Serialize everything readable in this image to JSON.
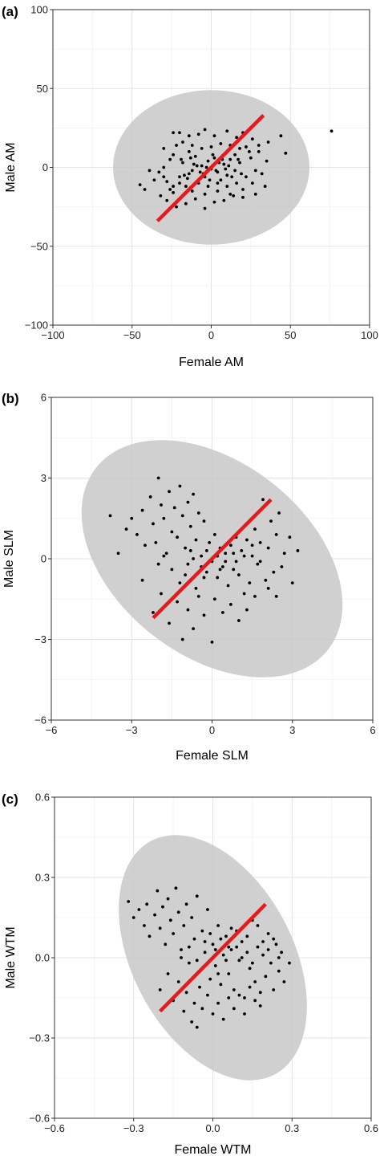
{
  "chart_data": [
    {
      "type": "scatter",
      "panel_label": "(a)",
      "xlabel": "Female AM",
      "ylabel": "Male AM",
      "xlim": [
        -100,
        100
      ],
      "ylim": [
        -100,
        100
      ],
      "xticks": [
        -100,
        -50,
        0,
        50,
        100
      ],
      "yticks": [
        -100,
        -50,
        0,
        50,
        100
      ],
      "xtick_labels": [
        "−100",
        "−50",
        "0",
        "50",
        "100"
      ],
      "ytick_labels": [
        "−100",
        "−50",
        "0",
        "50",
        "100"
      ],
      "grid": true,
      "colors": {
        "points": "#000000",
        "line": "#e41a1c",
        "ellipse": "#c8c8c8"
      },
      "fit_line": {
        "x": [
          -34,
          33
        ],
        "y": [
          -34,
          33
        ]
      },
      "ellipse": {
        "center": [
          0,
          0
        ],
        "axes": [
          62,
          49
        ],
        "angle_deg": 0
      },
      "points": [
        [
          76,
          23
        ],
        [
          44,
          20
        ],
        [
          47,
          9
        ],
        [
          36,
          16
        ],
        [
          30,
          10
        ],
        [
          25,
          6
        ],
        [
          22,
          13
        ],
        [
          18,
          3
        ],
        [
          15,
          -2
        ],
        [
          12,
          5
        ],
        [
          10,
          -5
        ],
        [
          8,
          2
        ],
        [
          6,
          -8
        ],
        [
          4,
          -3
        ],
        [
          2,
          6
        ],
        [
          0,
          -1
        ],
        [
          -2,
          4
        ],
        [
          -4,
          -6
        ],
        [
          -6,
          1
        ],
        [
          -8,
          -10
        ],
        [
          -10,
          7
        ],
        [
          -12,
          -2
        ],
        [
          -14,
          10
        ],
        [
          -16,
          -12
        ],
        [
          -18,
          3
        ],
        [
          -20,
          -6
        ],
        [
          -22,
          14
        ],
        [
          -24,
          -16
        ],
        [
          -26,
          5
        ],
        [
          -28,
          -9
        ],
        [
          -30,
          0
        ],
        [
          -33,
          -3
        ],
        [
          -36,
          -8
        ],
        [
          -39,
          -2
        ],
        [
          -42,
          -14
        ],
        [
          -45,
          -11
        ],
        [
          -24,
          22
        ],
        [
          -20,
          22
        ],
        [
          -14,
          20
        ],
        [
          -8,
          21
        ],
        [
          -4,
          24
        ],
        [
          2,
          20
        ],
        [
          10,
          23
        ],
        [
          16,
          19
        ],
        [
          20,
          22
        ],
        [
          26,
          18
        ],
        [
          -28,
          -21
        ],
        [
          -22,
          -25
        ],
        [
          -16,
          -23
        ],
        [
          -10,
          -20
        ],
        [
          -4,
          -26
        ],
        [
          2,
          -22
        ],
        [
          8,
          -21
        ],
        [
          14,
          -18
        ],
        [
          20,
          -14
        ],
        [
          26,
          -10
        ],
        [
          32,
          -4
        ],
        [
          35,
          4
        ],
        [
          28,
          -2
        ],
        [
          22,
          -6
        ],
        [
          16,
          -10
        ],
        [
          10,
          -12
        ],
        [
          4,
          -10
        ],
        [
          -2,
          -12
        ],
        [
          -8,
          -8
        ],
        [
          -14,
          -4
        ],
        [
          -20,
          -10
        ],
        [
          -26,
          -14
        ],
        [
          -32,
          -18
        ],
        [
          -30,
          12
        ],
        [
          -24,
          8
        ],
        [
          -18,
          16
        ],
        [
          -12,
          14
        ],
        [
          -6,
          12
        ],
        [
          0,
          13
        ],
        [
          6,
          15
        ],
        [
          12,
          14
        ],
        [
          18,
          12
        ],
        [
          24,
          10
        ],
        [
          30,
          14
        ],
        [
          34,
          -12
        ],
        [
          28,
          -17
        ],
        [
          20,
          -19
        ],
        [
          12,
          -17
        ],
        [
          4,
          -15
        ],
        [
          -4,
          -17
        ],
        [
          -12,
          -15
        ],
        [
          -18,
          -18
        ],
        [
          -24,
          -12
        ],
        [
          -30,
          -6
        ],
        [
          -3,
          0
        ],
        [
          3,
          -2
        ],
        [
          7,
          5
        ],
        [
          -7,
          -3
        ],
        [
          11,
          1
        ],
        [
          -11,
          2
        ],
        [
          15,
          8
        ],
        [
          -15,
          -7
        ],
        [
          19,
          -4
        ],
        [
          -19,
          5
        ],
        [
          1,
          8
        ],
        [
          -1,
          -8
        ],
        [
          5,
          3
        ],
        [
          -5,
          -4
        ],
        [
          9,
          -1
        ],
        [
          -9,
          1
        ],
        [
          13,
          -6
        ],
        [
          -13,
          6
        ],
        [
          17,
          5
        ],
        [
          -17,
          -5
        ]
      ]
    },
    {
      "type": "scatter",
      "panel_label": "(b)",
      "xlabel": "Female SLM",
      "ylabel": "Male SLM",
      "xlim": [
        -6,
        6
      ],
      "ylim": [
        -6,
        6
      ],
      "xticks": [
        -6,
        -3,
        0,
        3,
        6
      ],
      "yticks": [
        -6,
        -3,
        0,
        3,
        6
      ],
      "xtick_labels": [
        "−6",
        "−3",
        "0",
        "3",
        "6"
      ],
      "ytick_labels": [
        "−6",
        "−3",
        "0",
        "3",
        "6"
      ],
      "grid": true,
      "colors": {
        "points": "#000000",
        "line": "#e41a1c",
        "ellipse": "#c8c8c8"
      },
      "fit_line": {
        "x": [
          -2.2,
          2.2
        ],
        "y": [
          -2.2,
          2.2
        ]
      },
      "ellipse": {
        "center": [
          0,
          0
        ],
        "axes": [
          5.5,
          3.6
        ],
        "angle_deg": -38
      },
      "points": [
        [
          -3.8,
          1.6
        ],
        [
          -3.5,
          0.2
        ],
        [
          -3.2,
          1.1
        ],
        [
          -3.0,
          1.5
        ],
        [
          -2.8,
          0.9
        ],
        [
          -2.6,
          1.8
        ],
        [
          -2.5,
          0.5
        ],
        [
          -2.3,
          2.3
        ],
        [
          -2.2,
          1.3
        ],
        [
          -2.1,
          0.6
        ],
        [
          -2.0,
          3.0
        ],
        [
          -1.9,
          2.0
        ],
        [
          -1.8,
          1.5
        ],
        [
          -1.7,
          0.2
        ],
        [
          -1.6,
          2.5
        ],
        [
          -1.5,
          1.0
        ],
        [
          -1.4,
          1.9
        ],
        [
          -1.3,
          0.8
        ],
        [
          -1.2,
          2.7
        ],
        [
          -1.1,
          1.6
        ],
        [
          -1.0,
          0.4
        ],
        [
          -0.9,
          2.1
        ],
        [
          -0.8,
          1.2
        ],
        [
          -0.7,
          2.4
        ],
        [
          -0.6,
          0.7
        ],
        [
          -0.5,
          1.7
        ],
        [
          -0.4,
          0.1
        ],
        [
          -0.3,
          1.4
        ],
        [
          -0.2,
          -0.5
        ],
        [
          -0.1,
          0.6
        ],
        [
          0.0,
          -0.1
        ],
        [
          0.1,
          0.9
        ],
        [
          0.2,
          -0.7
        ],
        [
          0.3,
          0.4
        ],
        [
          0.4,
          -0.3
        ],
        [
          0.5,
          0.2
        ],
        [
          0.6,
          -1.0
        ],
        [
          0.7,
          0.5
        ],
        [
          0.8,
          -0.4
        ],
        [
          0.9,
          0.8
        ],
        [
          1.0,
          -0.6
        ],
        [
          1.1,
          0.3
        ],
        [
          1.2,
          -1.3
        ],
        [
          1.3,
          0.7
        ],
        [
          1.4,
          -0.9
        ],
        [
          1.5,
          0.1
        ],
        [
          1.6,
          1.1
        ],
        [
          1.7,
          -0.2
        ],
        [
          1.8,
          0.6
        ],
        [
          1.9,
          2.2
        ],
        [
          2.0,
          -0.8
        ],
        [
          2.1,
          0.4
        ],
        [
          2.2,
          1.4
        ],
        [
          2.3,
          -0.5
        ],
        [
          2.4,
          0.9
        ],
        [
          2.5,
          1.7
        ],
        [
          2.6,
          -0.3
        ],
        [
          2.7,
          0.2
        ],
        [
          2.9,
          0.8
        ],
        [
          3.0,
          -0.9
        ],
        [
          3.2,
          0.3
        ],
        [
          -2.6,
          -0.8
        ],
        [
          -2.2,
          -2.0
        ],
        [
          -1.9,
          -1.3
        ],
        [
          -1.6,
          -2.4
        ],
        [
          -1.3,
          -1.6
        ],
        [
          -1.1,
          -3.0
        ],
        [
          -0.9,
          -1.9
        ],
        [
          -0.7,
          -2.6
        ],
        [
          -0.5,
          -1.4
        ],
        [
          -0.3,
          -2.1
        ],
        [
          0.0,
          -3.1
        ],
        [
          -1.5,
          -0.4
        ],
        [
          -1.2,
          -0.9
        ],
        [
          -0.9,
          -0.2
        ],
        [
          -0.6,
          -1.1
        ],
        [
          -0.3,
          -0.7
        ],
        [
          0.1,
          -1.5
        ],
        [
          0.4,
          -2.0
        ],
        [
          0.7,
          -1.7
        ],
        [
          1.0,
          -2.3
        ],
        [
          1.3,
          -1.9
        ],
        [
          1.6,
          -1.4
        ],
        [
          -2.0,
          -0.2
        ],
        [
          -1.8,
          0.1
        ],
        [
          -1.0,
          -0.6
        ],
        [
          -0.8,
          0.3
        ],
        [
          0.2,
          0.1
        ],
        [
          0.5,
          -0.1
        ],
        [
          0.8,
          0.2
        ],
        [
          1.2,
          0.1
        ],
        [
          1.5,
          0.5
        ],
        [
          1.8,
          -0.1
        ],
        [
          2.1,
          -1.1
        ],
        [
          2.4,
          -1.4
        ],
        [
          -0.2,
          0.3
        ],
        [
          0.3,
          -0.4
        ],
        [
          0.6,
          0.6
        ],
        [
          0.9,
          -0.1
        ],
        [
          -0.4,
          -0.3
        ],
        [
          -0.7,
          0.0
        ]
      ]
    },
    {
      "type": "scatter",
      "panel_label": "(c)",
      "xlabel": "Female WTM",
      "ylabel": "Male WTM",
      "xlim": [
        -0.6,
        0.6
      ],
      "ylim": [
        -0.6,
        0.6
      ],
      "xticks": [
        -0.6,
        -0.3,
        0.0,
        0.3,
        0.6
      ],
      "yticks": [
        -0.6,
        -0.3,
        0.0,
        0.3,
        0.6
      ],
      "xtick_labels": [
        "−0.6",
        "−0.3",
        "0.0",
        "0.3",
        "0.6"
      ],
      "ytick_labels": [
        "−0.6",
        "−0.3",
        "0.0",
        "0.3",
        "0.6"
      ],
      "grid": true,
      "colors": {
        "points": "#000000",
        "line": "#e41a1c",
        "ellipse": "#c8c8c8"
      },
      "fit_line": {
        "x": [
          -0.2,
          0.2
        ],
        "y": [
          -0.2,
          0.2
        ]
      },
      "ellipse": {
        "center": [
          0,
          0
        ],
        "axes": [
          0.5,
          0.3
        ],
        "angle_deg": -62
      },
      "points": [
        [
          -0.32,
          0.21
        ],
        [
          -0.3,
          0.15
        ],
        [
          -0.28,
          0.18
        ],
        [
          -0.26,
          0.12
        ],
        [
          -0.25,
          0.2
        ],
        [
          -0.24,
          0.08
        ],
        [
          -0.22,
          0.16
        ],
        [
          -0.21,
          0.25
        ],
        [
          -0.2,
          0.11
        ],
        [
          -0.19,
          0.19
        ],
        [
          -0.18,
          0.05
        ],
        [
          -0.17,
          0.22
        ],
        [
          -0.16,
          0.14
        ],
        [
          -0.15,
          0.09
        ],
        [
          -0.14,
          0.26
        ],
        [
          -0.13,
          0.17
        ],
        [
          -0.12,
          0.03
        ],
        [
          -0.11,
          0.12
        ],
        [
          -0.1,
          0.2
        ],
        [
          -0.09,
          -0.02
        ],
        [
          -0.08,
          0.15
        ],
        [
          -0.07,
          0.07
        ],
        [
          -0.06,
          0.23
        ],
        [
          -0.05,
          -0.05
        ],
        [
          -0.04,
          0.1
        ],
        [
          -0.03,
          0.02
        ],
        [
          -0.02,
          0.18
        ],
        [
          -0.01,
          -0.08
        ],
        [
          0.0,
          0.05
        ],
        [
          0.01,
          -0.03
        ],
        [
          0.02,
          0.12
        ],
        [
          0.03,
          -0.1
        ],
        [
          0.04,
          0.01
        ],
        [
          0.05,
          0.08
        ],
        [
          0.06,
          -0.06
        ],
        [
          0.07,
          0.03
        ],
        [
          0.08,
          -0.12
        ],
        [
          0.09,
          0.1
        ],
        [
          0.1,
          -0.01
        ],
        [
          0.11,
          0.06
        ],
        [
          0.12,
          -0.15
        ],
        [
          0.13,
          0.02
        ],
        [
          0.14,
          -0.04
        ],
        [
          0.15,
          0.14
        ],
        [
          0.16,
          -0.09
        ],
        [
          0.17,
          0.04
        ],
        [
          0.18,
          -0.18
        ],
        [
          0.19,
          0.01
        ],
        [
          0.2,
          -0.07
        ],
        [
          0.21,
          0.09
        ],
        [
          0.22,
          -0.02
        ],
        [
          0.23,
          -0.12
        ],
        [
          0.24,
          0.05
        ],
        [
          0.25,
          -0.05
        ],
        [
          0.26,
          0.02
        ],
        [
          0.27,
          -0.09
        ],
        [
          0.29,
          -0.02
        ],
        [
          -0.2,
          -0.12
        ],
        [
          -0.17,
          -0.06
        ],
        [
          -0.15,
          -0.16
        ],
        [
          -0.13,
          -0.09
        ],
        [
          -0.11,
          -0.2
        ],
        [
          -0.1,
          -0.13
        ],
        [
          -0.08,
          -0.24
        ],
        [
          -0.07,
          -0.17
        ],
        [
          -0.06,
          -0.26
        ],
        [
          -0.05,
          -0.11
        ],
        [
          -0.04,
          -0.19
        ],
        [
          -0.02,
          -0.14
        ],
        [
          0.0,
          -0.21
        ],
        [
          0.02,
          -0.17
        ],
        [
          0.04,
          -0.23
        ],
        [
          0.06,
          -0.15
        ],
        [
          0.08,
          -0.19
        ],
        [
          0.1,
          -0.14
        ],
        [
          0.12,
          -0.21
        ],
        [
          0.14,
          -0.11
        ],
        [
          0.16,
          -0.16
        ],
        [
          0.18,
          -0.13
        ],
        [
          -0.12,
          0.0
        ],
        [
          -0.09,
          0.04
        ],
        [
          -0.06,
          -0.01
        ],
        [
          -0.03,
          0.06
        ],
        [
          0.01,
          0.03
        ],
        [
          0.03,
          0.07
        ],
        [
          0.05,
          -0.01
        ],
        [
          0.07,
          0.11
        ],
        [
          0.09,
          0.04
        ],
        [
          0.11,
          0.0
        ],
        [
          0.13,
          0.08
        ],
        [
          0.15,
          -0.02
        ],
        [
          0.17,
          0.12
        ],
        [
          0.19,
          0.06
        ],
        [
          0.21,
          0.03
        ],
        [
          0.23,
          0.07
        ],
        [
          0.25,
          0.0
        ],
        [
          -0.01,
          0.09
        ],
        [
          0.02,
          -0.06
        ],
        [
          -0.04,
          -0.04
        ],
        [
          0.06,
          0.04
        ]
      ]
    }
  ]
}
